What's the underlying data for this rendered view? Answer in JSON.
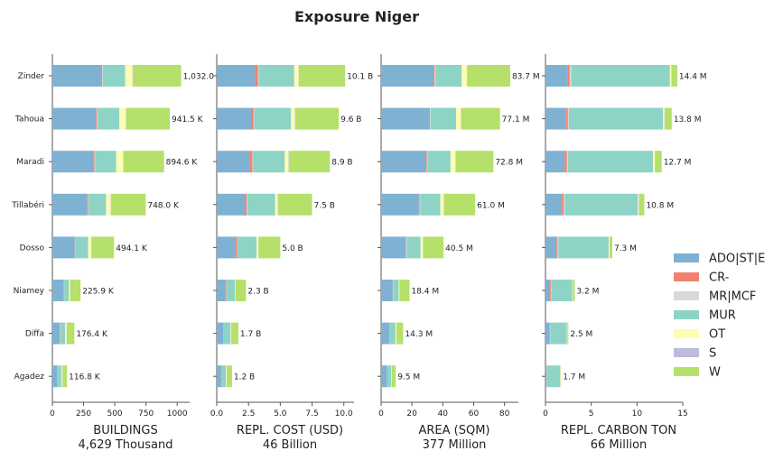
{
  "title": "Exposure Niger",
  "categories": [
    "Zinder",
    "Tahoua",
    "Maradi",
    "Tillabéri",
    "Dosso",
    "Niamey",
    "Diffa",
    "Agadez"
  ],
  "segment_colors": {
    "ADO|ST|E": "#7fb1d3",
    "CR-": "#f4806f",
    "MR|MCF": "#d9d9d9",
    "MUR": "#8dd4c7",
    "OT": "#fdfdb3",
    "S": "#bebadb",
    "W": "#b5e06a"
  },
  "legend": [
    "ADO|ST|E",
    "CR-",
    "MR|MCF",
    "MUR",
    "OT",
    "S",
    "W"
  ],
  "chart_data": [
    {
      "type": "bar",
      "xlabel": "BUILDINGS",
      "sublabel": "4,629 Thousand",
      "xlim": [
        0,
        1100
      ],
      "xticks": [
        "0",
        "250",
        "500",
        "750",
        "1000"
      ],
      "xtick_values": [
        0,
        250,
        500,
        750,
        1000
      ],
      "totals": [
        "1,032.0",
        "941.5 K",
        "894.6 K",
        "748.0 K",
        "494.1 K",
        "225.9 K",
        "176.4 K",
        "116.8 K"
      ],
      "series": [
        {
          "name": "ADO|ST|E",
          "values": [
            390,
            350,
            330,
            280,
            180,
            90,
            60,
            40
          ]
        },
        {
          "name": "CR-",
          "values": [
            8,
            7,
            7,
            6,
            4,
            3,
            3,
            2
          ]
        },
        {
          "name": "MR|MCF",
          "values": [
            6,
            5,
            5,
            4,
            3,
            2,
            2,
            2
          ]
        },
        {
          "name": "MUR",
          "values": [
            180,
            175,
            170,
            140,
            100,
            38,
            38,
            30
          ]
        },
        {
          "name": "OT",
          "values": [
            58,
            52,
            55,
            38,
            25,
            8,
            11,
            6
          ]
        },
        {
          "name": "S",
          "values": [
            4,
            3,
            3,
            3,
            2,
            2,
            2,
            2
          ]
        },
        {
          "name": "W",
          "values": [
            386,
            349,
            325,
            277,
            180,
            83,
            60,
            35
          ]
        }
      ]
    },
    {
      "type": "bar",
      "xlabel": "REPL. COST (USD)",
      "sublabel": "46 Billion",
      "xlim": [
        0,
        10.8
      ],
      "xticks": [
        "0.0",
        "2.5",
        "5.0",
        "7.5",
        "10.0"
      ],
      "xtick_values": [
        0,
        2.5,
        5,
        7.5,
        10
      ],
      "totals": [
        "10.1 B",
        "9.6 B",
        "8.9 B",
        "7.5 B",
        "5.0 B",
        "2.3 B",
        "1.7 B",
        "1.2 B"
      ],
      "series": [
        {
          "name": "ADO|ST|E",
          "values": [
            3.0,
            2.7,
            2.6,
            2.2,
            1.5,
            0.7,
            0.5,
            0.35
          ]
        },
        {
          "name": "CR-",
          "values": [
            0.25,
            0.2,
            0.2,
            0.15,
            0.1,
            0.05,
            0.05,
            0.05
          ]
        },
        {
          "name": "MR|MCF",
          "values": [
            0.05,
            0.05,
            0.05,
            0.05,
            0.03,
            0.02,
            0.02,
            0.02
          ]
        },
        {
          "name": "MUR",
          "values": [
            2.8,
            2.9,
            2.5,
            2.2,
            1.5,
            0.65,
            0.5,
            0.3
          ]
        },
        {
          "name": "OT",
          "values": [
            0.35,
            0.3,
            0.3,
            0.2,
            0.15,
            0.05,
            0.05,
            0.05
          ]
        },
        {
          "name": "S",
          "values": [
            0.05,
            0.05,
            0.05,
            0.05,
            0.02,
            0.02,
            0.02,
            0.02
          ]
        },
        {
          "name": "W",
          "values": [
            3.6,
            3.4,
            3.2,
            2.65,
            1.7,
            0.81,
            0.56,
            0.41
          ]
        }
      ]
    },
    {
      "type": "bar",
      "xlabel": "AREA (SQM)",
      "sublabel": "377 Million",
      "xlim": [
        0,
        89
      ],
      "xticks": [
        "0",
        "20",
        "40",
        "60",
        "80"
      ],
      "xtick_values": [
        0,
        20,
        40,
        60,
        80
      ],
      "totals": [
        "83.7 M",
        "77.1 M",
        "72.8 M",
        "61.0 M",
        "40.5 M",
        "18.4 M",
        "14.3 M",
        "9.5 M"
      ],
      "series": [
        {
          "name": "ADO|ST|E",
          "values": [
            34,
            31,
            29,
            24.5,
            16,
            7.5,
            5.5,
            3.8
          ]
        },
        {
          "name": "CR-",
          "values": [
            0.7,
            0.6,
            0.6,
            0.5,
            0.3,
            0.2,
            0.2,
            0.1
          ]
        },
        {
          "name": "MR|MCF",
          "values": [
            0.5,
            0.5,
            0.4,
            0.4,
            0.3,
            0.2,
            0.1,
            0.1
          ]
        },
        {
          "name": "MUR",
          "values": [
            17,
            16.5,
            15,
            13,
            9,
            3.5,
            3.5,
            2.5
          ]
        },
        {
          "name": "OT",
          "values": [
            3.5,
            3.2,
            3.3,
            2.3,
            1.5,
            0.5,
            0.6,
            0.3
          ]
        },
        {
          "name": "S",
          "values": [
            0.3,
            0.3,
            0.3,
            0.3,
            0.2,
            0.1,
            0.1,
            0.1
          ]
        },
        {
          "name": "W",
          "values": [
            27.7,
            25,
            24.2,
            20,
            13.2,
            6.4,
            4.3,
            2.6
          ]
        }
      ]
    },
    {
      "type": "bar",
      "xlabel": "REPL. CARBON TON",
      "sublabel": "66 Million",
      "xlim": [
        0,
        15
      ],
      "xticks": [
        "0",
        "5",
        "10",
        "15"
      ],
      "xtick_values": [
        0,
        5,
        10,
        15
      ],
      "totals": [
        "14.4 M",
        "13.8 M",
        "12.7 M",
        "10.8 M",
        "7.3 M",
        "3.2 M",
        "2.5 M",
        "1.7 M"
      ],
      "series": [
        {
          "name": "ADO|ST|E",
          "values": [
            2.4,
            2.2,
            2.1,
            1.8,
            1.2,
            0.5,
            0.4,
            0.1
          ]
        },
        {
          "name": "CR-",
          "values": [
            0.25,
            0.25,
            0.25,
            0.2,
            0.12,
            0.08,
            0.08,
            0.03
          ]
        },
        {
          "name": "MR|MCF",
          "values": [
            0.15,
            0.1,
            0.1,
            0.1,
            0.08,
            0.05,
            0.05,
            0.02
          ]
        },
        {
          "name": "MUR",
          "values": [
            10.8,
            10.3,
            9.3,
            8.0,
            5.5,
            2.3,
            1.8,
            1.45
          ]
        },
        {
          "name": "OT",
          "values": [
            0.15,
            0.15,
            0.2,
            0.1,
            0.1,
            0.05,
            0.05,
            0.03
          ]
        },
        {
          "name": "S",
          "values": [
            0.05,
            0.05,
            0.05,
            0.05,
            0.03,
            0.02,
            0.02,
            0.02
          ]
        },
        {
          "name": "W",
          "values": [
            0.6,
            0.75,
            0.7,
            0.55,
            0.27,
            0.2,
            0.1,
            0.05
          ]
        }
      ]
    }
  ]
}
